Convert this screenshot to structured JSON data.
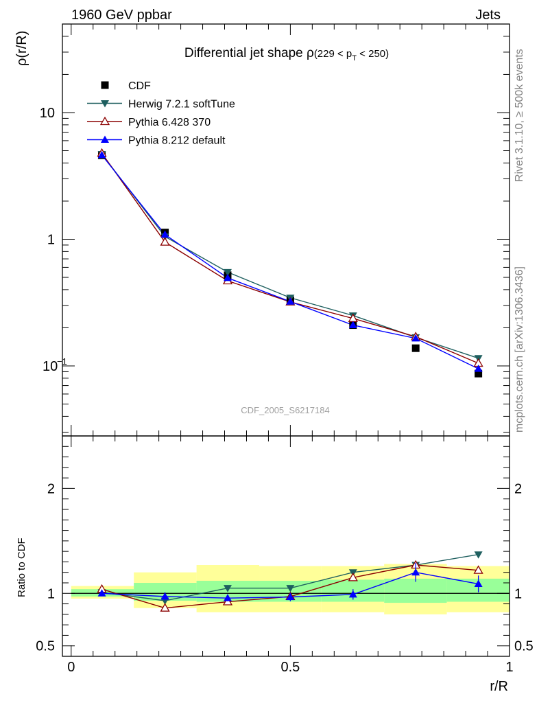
{
  "header": {
    "left": "1960 GeV ppbar",
    "right": "Jets",
    "side_top": "Rivet 3.1.10, ≥ 500k events",
    "side_bottom": "mcplots.cern.ch [arXiv:1306.3436]"
  },
  "chart_data": [
    {
      "type": "line",
      "panel": "main",
      "title_main": "Differential jet shape ",
      "title_rho": "ρ",
      "title_range": "(229 < p",
      "title_sub": "T",
      "title_end": " < 250)",
      "ylabel": "ρ(r/R)",
      "yscale": "log",
      "ylim": [
        0.028,
        50
      ],
      "xlim": [
        -0.02,
        1.0
      ],
      "y_ticks": [
        {
          "value": 10,
          "label": "10"
        },
        {
          "value": 1,
          "label": "1"
        },
        {
          "value": 0.1,
          "label": "10",
          "exp": "−1"
        }
      ],
      "watermark": "CDF_2005_S6217184",
      "x": [
        0.07,
        0.214,
        0.357,
        0.5,
        0.643,
        0.786,
        0.929
      ],
      "series": [
        {
          "name": "CDF",
          "color": "#000000",
          "marker": "square",
          "values": [
            4.6,
            1.13,
            0.52,
            0.33,
            0.21,
            0.138,
            0.087
          ]
        },
        {
          "name": "Herwig 7.2.1 softTune",
          "color": "#1e5f5f",
          "marker": "triangle-down",
          "values": [
            4.7,
            1.05,
            0.55,
            0.345,
            0.25,
            0.168,
            0.115
          ]
        },
        {
          "name": "Pythia 6.428 370",
          "color": "#8b0000",
          "marker": "triangle-up-open",
          "values": [
            4.78,
            0.95,
            0.47,
            0.32,
            0.237,
            0.17,
            0.105
          ]
        },
        {
          "name": "Pythia 8.212 default",
          "color": "#0000ff",
          "marker": "triangle-up",
          "values": [
            4.62,
            1.09,
            0.495,
            0.322,
            0.21,
            0.165,
            0.095
          ]
        }
      ]
    },
    {
      "type": "line",
      "panel": "ratio",
      "ylabel": "Ratio to CDF",
      "xlabel": "r/R",
      "ylim": [
        0.4,
        2.5
      ],
      "y_ticks": [
        {
          "value": 2,
          "label": "2"
        },
        {
          "value": 1,
          "label": "1"
        },
        {
          "value": 0.5,
          "label": "0.5"
        }
      ],
      "x_ticks": [
        {
          "value": 0,
          "label": "0"
        },
        {
          "value": 0.5,
          "label": "0.5"
        },
        {
          "value": 1,
          "label": "1"
        }
      ],
      "bands": [
        {
          "x0": 0.0,
          "x1": 0.143,
          "inner": [
            0.97,
            1.04
          ],
          "outer": [
            0.95,
            1.07
          ]
        },
        {
          "x0": 0.143,
          "x1": 0.286,
          "inner": [
            0.93,
            1.1
          ],
          "outer": [
            0.86,
            1.2
          ]
        },
        {
          "x0": 0.286,
          "x1": 0.429,
          "inner": [
            0.92,
            1.12
          ],
          "outer": [
            0.82,
            1.27
          ]
        },
        {
          "x0": 0.429,
          "x1": 0.571,
          "inner": [
            0.92,
            1.12
          ],
          "outer": [
            0.82,
            1.26
          ]
        },
        {
          "x0": 0.571,
          "x1": 0.714,
          "inner": [
            0.92,
            1.13
          ],
          "outer": [
            0.82,
            1.26
          ]
        },
        {
          "x0": 0.714,
          "x1": 0.857,
          "inner": [
            0.91,
            1.14
          ],
          "outer": [
            0.8,
            1.28
          ]
        },
        {
          "x0": 0.857,
          "x1": 1.0,
          "inner": [
            0.92,
            1.14
          ],
          "outer": [
            0.82,
            1.26
          ]
        }
      ],
      "x": [
        0.07,
        0.214,
        0.357,
        0.5,
        0.643,
        0.786,
        0.929
      ],
      "series": [
        {
          "name": "Herwig 7.2.1 softTune",
          "color": "#1e5f5f",
          "marker": "triangle-down",
          "values": [
            1.01,
            0.93,
            1.05,
            1.05,
            1.2,
            1.27,
            1.37
          ],
          "errors": [
            0,
            0,
            0,
            0,
            0,
            0,
            0.02
          ]
        },
        {
          "name": "Pythia 6.428 370",
          "color": "#8b0000",
          "marker": "triangle-up-open",
          "values": [
            1.04,
            0.86,
            0.92,
            0.97,
            1.15,
            1.27,
            1.22
          ],
          "errors": [
            0,
            0,
            0,
            0,
            0,
            0,
            0
          ]
        },
        {
          "name": "Pythia 8.212 default",
          "color": "#0000ff",
          "marker": "triangle-up",
          "values": [
            1.0,
            0.97,
            0.955,
            0.965,
            0.99,
            1.2,
            1.09
          ],
          "errors": [
            0.02,
            0.04,
            0.03,
            0.04,
            0.05,
            0.09,
            0.08
          ]
        }
      ]
    }
  ]
}
